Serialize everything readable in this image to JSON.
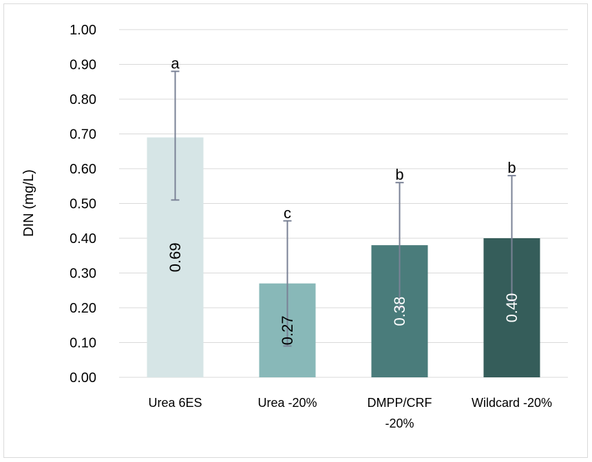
{
  "chart_data": {
    "type": "bar",
    "title": "",
    "xlabel": "",
    "ylabel": "DIN (mg/L)",
    "ylim": [
      0,
      1
    ],
    "yticks": [
      "0.00",
      "0.10",
      "0.20",
      "0.30",
      "0.40",
      "0.50",
      "0.60",
      "0.70",
      "0.80",
      "0.90",
      "1.00"
    ],
    "grid": true,
    "legend": "none",
    "categories": [
      [
        "Urea 6ES"
      ],
      [
        "Urea -20%"
      ],
      [
        "DMPP/CRF",
        "-20%"
      ],
      [
        "Wildcard -20%"
      ]
    ],
    "values": [
      0.69,
      0.27,
      0.38,
      0.4
    ],
    "value_labels": [
      "0.69",
      "0.27",
      "0.38",
      "0.40"
    ],
    "error_low": [
      0.51,
      0.09,
      0.2,
      0.22
    ],
    "error_high": [
      0.88,
      0.45,
      0.56,
      0.58
    ],
    "significance_letters": [
      "a",
      "c",
      "b",
      "b"
    ],
    "bar_colors": [
      "#d6e5e6",
      "#88b8b8",
      "#4a7c7b",
      "#355d5a"
    ],
    "label_colors": [
      "#000000",
      "#000000",
      "#ffffff",
      "#ffffff"
    ],
    "error_bar_color": "#7a8296",
    "gridline_color": "#d9d9d9"
  }
}
